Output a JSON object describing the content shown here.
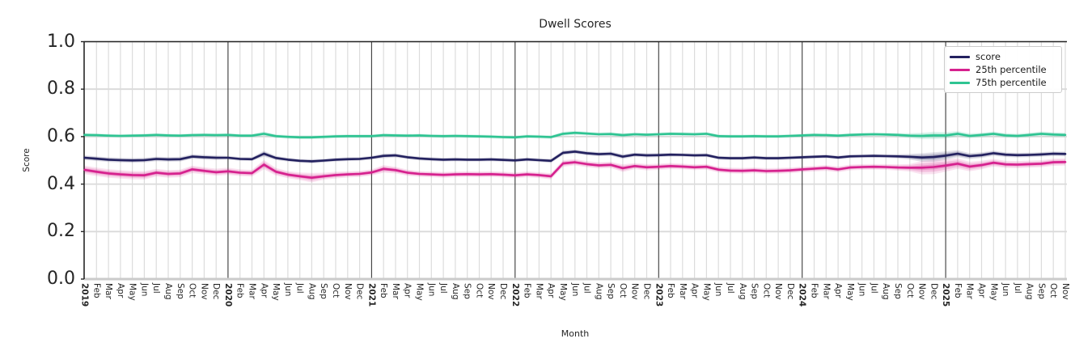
{
  "chart": {
    "title": "Dwell Scores",
    "xlabel": "Month",
    "ylabel": "Score"
  },
  "colors": {
    "grid_vertical": "#dcdcdc",
    "grid_horizontal": "#d9d9d9",
    "year_line": "#3a3a3a",
    "spine": "#262626",
    "baseline": "#cbcbcb",
    "text": "#262626",
    "legend_border": "#cccccc"
  },
  "chart_data": {
    "type": "line",
    "title": "Dwell Scores",
    "xlabel": "Month",
    "ylabel": "Score",
    "ylim": [
      0.0,
      1.0
    ],
    "ytick_labels": [
      "0.0",
      "0.2",
      "0.4",
      "0.6",
      "0.8",
      "1.0"
    ],
    "grid": true,
    "legend_position": "upper right",
    "x_labels": [
      "2019",
      "Feb",
      "Mar",
      "Apr",
      "May",
      "Jun",
      "Jul",
      "Aug",
      "Sep",
      "Oct",
      "Nov",
      "Dec",
      "2020",
      "Feb",
      "Mar",
      "Apr",
      "May",
      "Jun",
      "Jul",
      "Aug",
      "Sep",
      "Oct",
      "Nov",
      "Dec",
      "2021",
      "Feb",
      "Mar",
      "Apr",
      "May",
      "Jun",
      "Jul",
      "Aug",
      "Sep",
      "Oct",
      "Nov",
      "Dec",
      "2022",
      "Feb",
      "Mar",
      "Apr",
      "May",
      "Jun",
      "Jul",
      "Aug",
      "Sep",
      "Oct",
      "Nov",
      "Dec",
      "2023",
      "Feb",
      "Mar",
      "Apr",
      "May",
      "Jun",
      "Jul",
      "Aug",
      "Sep",
      "Oct",
      "Nov",
      "Dec",
      "2024",
      "Feb",
      "Mar",
      "Apr",
      "May",
      "Jun",
      "Jul",
      "Aug",
      "Sep",
      "Oct",
      "Nov",
      "Dec",
      "2025",
      "Feb",
      "Mar",
      "Apr",
      "May",
      "Jun",
      "Jul",
      "Aug",
      "Sep",
      "Oct",
      "Nov"
    ],
    "series": [
      {
        "name": "score",
        "color": "#23215f",
        "values": [
          0.511,
          0.507,
          0.503,
          0.501,
          0.5,
          0.501,
          0.506,
          0.504,
          0.505,
          0.516,
          0.513,
          0.511,
          0.511,
          0.506,
          0.505,
          0.528,
          0.51,
          0.503,
          0.498,
          0.496,
          0.499,
          0.503,
          0.505,
          0.506,
          0.511,
          0.519,
          0.521,
          0.513,
          0.508,
          0.505,
          0.503,
          0.504,
          0.503,
          0.503,
          0.504,
          0.502,
          0.5,
          0.504,
          0.501,
          0.498,
          0.532,
          0.537,
          0.53,
          0.526,
          0.528,
          0.516,
          0.524,
          0.521,
          0.522,
          0.524,
          0.523,
          0.521,
          0.522,
          0.511,
          0.509,
          0.509,
          0.512,
          0.509,
          0.509,
          0.511,
          0.513,
          0.515,
          0.517,
          0.512,
          0.517,
          0.518,
          0.519,
          0.518,
          0.517,
          0.515,
          0.512,
          0.514,
          0.52,
          0.528,
          0.518,
          0.522,
          0.53,
          0.524,
          0.522,
          0.523,
          0.525,
          0.528,
          0.527
        ],
        "band_delta": [
          0.01,
          0.01,
          0.01,
          0.01,
          0.01,
          0.01,
          0.01,
          0.01,
          0.01,
          0.01,
          0.01,
          0.01,
          0.008,
          0.008,
          0.008,
          0.013,
          0.009,
          0.008,
          0.008,
          0.009,
          0.008,
          0.008,
          0.008,
          0.008,
          0.008,
          0.01,
          0.009,
          0.008,
          0.008,
          0.008,
          0.008,
          0.008,
          0.008,
          0.008,
          0.008,
          0.008,
          0.008,
          0.008,
          0.008,
          0.009,
          0.01,
          0.009,
          0.009,
          0.009,
          0.009,
          0.01,
          0.009,
          0.009,
          0.009,
          0.008,
          0.008,
          0.008,
          0.008,
          0.008,
          0.008,
          0.008,
          0.008,
          0.008,
          0.008,
          0.008,
          0.008,
          0.008,
          0.008,
          0.008,
          0.008,
          0.008,
          0.008,
          0.008,
          0.009,
          0.012,
          0.018,
          0.02,
          0.018,
          0.015,
          0.013,
          0.012,
          0.011,
          0.01,
          0.01,
          0.01,
          0.01,
          0.01,
          0.01
        ]
      },
      {
        "name": "25th percentile",
        "color": "#d6218e",
        "values": [
          0.46,
          0.452,
          0.445,
          0.441,
          0.438,
          0.437,
          0.448,
          0.443,
          0.445,
          0.462,
          0.456,
          0.45,
          0.454,
          0.448,
          0.446,
          0.482,
          0.452,
          0.44,
          0.433,
          0.427,
          0.433,
          0.438,
          0.441,
          0.443,
          0.449,
          0.464,
          0.459,
          0.448,
          0.443,
          0.441,
          0.439,
          0.441,
          0.442,
          0.441,
          0.442,
          0.44,
          0.437,
          0.441,
          0.438,
          0.433,
          0.487,
          0.492,
          0.484,
          0.479,
          0.481,
          0.467,
          0.476,
          0.471,
          0.473,
          0.476,
          0.474,
          0.471,
          0.473,
          0.461,
          0.457,
          0.456,
          0.458,
          0.455,
          0.456,
          0.458,
          0.462,
          0.465,
          0.468,
          0.462,
          0.47,
          0.472,
          0.473,
          0.472,
          0.47,
          0.469,
          0.469,
          0.472,
          0.478,
          0.486,
          0.474,
          0.48,
          0.49,
          0.483,
          0.482,
          0.484,
          0.486,
          0.492,
          0.493
        ],
        "band_delta": [
          0.018,
          0.018,
          0.018,
          0.018,
          0.018,
          0.018,
          0.016,
          0.016,
          0.016,
          0.016,
          0.015,
          0.015,
          0.015,
          0.014,
          0.014,
          0.02,
          0.016,
          0.015,
          0.016,
          0.02,
          0.015,
          0.014,
          0.013,
          0.013,
          0.013,
          0.016,
          0.014,
          0.013,
          0.012,
          0.012,
          0.012,
          0.012,
          0.012,
          0.012,
          0.012,
          0.012,
          0.012,
          0.012,
          0.012,
          0.013,
          0.014,
          0.013,
          0.013,
          0.013,
          0.013,
          0.016,
          0.013,
          0.013,
          0.013,
          0.013,
          0.012,
          0.012,
          0.012,
          0.012,
          0.012,
          0.012,
          0.012,
          0.012,
          0.012,
          0.012,
          0.012,
          0.012,
          0.012,
          0.012,
          0.012,
          0.012,
          0.012,
          0.012,
          0.013,
          0.016,
          0.028,
          0.03,
          0.026,
          0.022,
          0.02,
          0.018,
          0.016,
          0.015,
          0.015,
          0.015,
          0.015,
          0.015,
          0.015
        ]
      },
      {
        "name": "75th percentile",
        "color": "#2ec492",
        "values": [
          0.607,
          0.606,
          0.604,
          0.603,
          0.604,
          0.605,
          0.607,
          0.605,
          0.604,
          0.606,
          0.607,
          0.606,
          0.607,
          0.604,
          0.604,
          0.612,
          0.602,
          0.599,
          0.597,
          0.597,
          0.599,
          0.601,
          0.602,
          0.602,
          0.602,
          0.606,
          0.605,
          0.604,
          0.605,
          0.603,
          0.602,
          0.603,
          0.602,
          0.601,
          0.6,
          0.598,
          0.597,
          0.601,
          0.6,
          0.598,
          0.612,
          0.616,
          0.613,
          0.61,
          0.611,
          0.606,
          0.61,
          0.608,
          0.61,
          0.612,
          0.611,
          0.61,
          0.612,
          0.602,
          0.601,
          0.601,
          0.602,
          0.601,
          0.601,
          0.603,
          0.605,
          0.607,
          0.606,
          0.604,
          0.607,
          0.609,
          0.61,
          0.609,
          0.607,
          0.604,
          0.603,
          0.605,
          0.605,
          0.612,
          0.603,
          0.607,
          0.612,
          0.605,
          0.603,
          0.607,
          0.612,
          0.609,
          0.607
        ],
        "band_delta": [
          0.008,
          0.008,
          0.008,
          0.008,
          0.008,
          0.008,
          0.008,
          0.008,
          0.008,
          0.008,
          0.008,
          0.008,
          0.008,
          0.008,
          0.008,
          0.01,
          0.008,
          0.008,
          0.008,
          0.008,
          0.008,
          0.008,
          0.008,
          0.008,
          0.008,
          0.008,
          0.008,
          0.008,
          0.008,
          0.008,
          0.008,
          0.008,
          0.008,
          0.008,
          0.008,
          0.008,
          0.008,
          0.008,
          0.008,
          0.008,
          0.009,
          0.009,
          0.008,
          0.008,
          0.008,
          0.009,
          0.008,
          0.008,
          0.008,
          0.008,
          0.008,
          0.008,
          0.008,
          0.008,
          0.008,
          0.008,
          0.008,
          0.008,
          0.008,
          0.008,
          0.008,
          0.008,
          0.008,
          0.008,
          0.008,
          0.008,
          0.008,
          0.008,
          0.009,
          0.011,
          0.014,
          0.016,
          0.014,
          0.012,
          0.011,
          0.01,
          0.01,
          0.01,
          0.01,
          0.01,
          0.01,
          0.01,
          0.01
        ]
      }
    ]
  }
}
